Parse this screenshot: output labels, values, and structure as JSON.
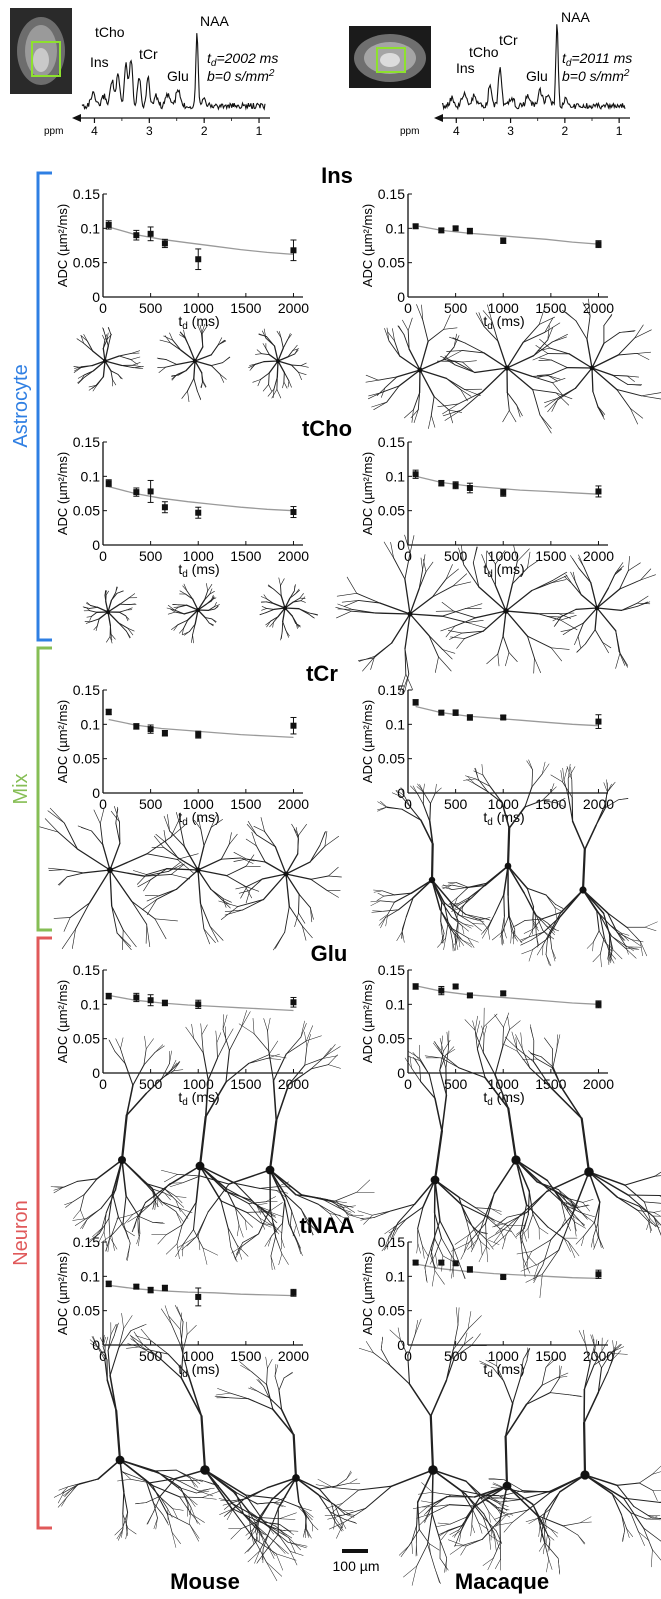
{
  "columns": {
    "left": "Mouse",
    "right": "Macaque"
  },
  "groups": [
    {
      "label": "Astrocyte",
      "color": "#2f7fe3"
    },
    {
      "label": "Mix",
      "color": "#86be55"
    },
    {
      "label": "Neuron",
      "color": "#e0595a"
    }
  ],
  "scale_bar": "100 µm",
  "spectra": [
    {
      "peaks": [
        "Ins",
        "tCho",
        "tCr",
        "Glu",
        "NAA"
      ],
      "td_label": "t",
      "td_sub": "d",
      "td_value": "=2002 ms",
      "b_value": "b=0 s/mm",
      "b_sup": "2",
      "ppm_label": "ppm",
      "ppm_ticks": [
        "4",
        "3",
        "2",
        "1"
      ]
    },
    {
      "peaks": [
        "Ins",
        "tCho",
        "tCr",
        "Glu",
        "NAA"
      ],
      "td_label": "t",
      "td_sub": "d",
      "td_value": "=2011 ms",
      "b_value": "b=0 s/mm",
      "b_sup": "2",
      "ppm_label": "ppm",
      "ppm_ticks": [
        "4",
        "3",
        "2",
        "1"
      ]
    }
  ],
  "axis_text": {
    "y_label": "ADC (µm²/ms)",
    "x_label_main": "t",
    "x_label_sub": "d",
    "x_label_unit": " (ms)"
  },
  "chart_data": [
    {
      "metabolite": "Ins",
      "species": "Mouse",
      "type": "scatter",
      "xlim": [
        0,
        2100
      ],
      "ylim": [
        0,
        0.15
      ],
      "xticks": [
        0,
        500,
        1000,
        1500,
        2000
      ],
      "yticks": [
        0,
        0.05,
        0.1,
        0.15
      ],
      "x": [
        60,
        350,
        500,
        650,
        1000,
        2000
      ],
      "y": [
        0.105,
        0.09,
        0.092,
        0.078,
        0.055,
        0.068
      ],
      "err": [
        0.006,
        0.007,
        0.01,
        0.006,
        0.015,
        0.015
      ],
      "fit": [
        0.102,
        0.091,
        0.084,
        0.079,
        0.074,
        0.069,
        0.065,
        0.062
      ]
    },
    {
      "metabolite": "Ins",
      "species": "Macaque",
      "type": "scatter",
      "xlim": [
        0,
        2100
      ],
      "ylim": [
        0,
        0.15
      ],
      "xticks": [
        0,
        500,
        1000,
        1500,
        2000
      ],
      "yticks": [
        0,
        0.05,
        0.1,
        0.15
      ],
      "x": [
        80,
        350,
        500,
        650,
        1000,
        2000
      ],
      "y": [
        0.103,
        0.097,
        0.1,
        0.096,
        0.082,
        0.077
      ],
      "err": [
        0.003,
        0.003,
        0.003,
        0.004,
        0.004,
        0.005
      ],
      "fit": [
        0.104,
        0.097,
        0.093,
        0.09,
        0.087,
        0.084,
        0.08,
        0.077
      ]
    },
    {
      "metabolite": "tCho",
      "species": "Mouse",
      "type": "scatter",
      "xlim": [
        0,
        2100
      ],
      "ylim": [
        0,
        0.15
      ],
      "xticks": [
        0,
        500,
        1000,
        1500,
        2000
      ],
      "yticks": [
        0,
        0.05,
        0.1,
        0.15
      ],
      "x": [
        60,
        350,
        500,
        650,
        1000,
        2000
      ],
      "y": [
        0.09,
        0.077,
        0.078,
        0.055,
        0.047,
        0.048
      ],
      "err": [
        0.005,
        0.006,
        0.016,
        0.008,
        0.008,
        0.008
      ],
      "fit": [
        0.085,
        0.075,
        0.068,
        0.063,
        0.059,
        0.055,
        0.052,
        0.05
      ]
    },
    {
      "metabolite": "tCho",
      "species": "Macaque",
      "type": "scatter",
      "xlim": [
        0,
        2100
      ],
      "ylim": [
        0,
        0.15
      ],
      "xticks": [
        0,
        500,
        1000,
        1500,
        2000
      ],
      "yticks": [
        0,
        0.05,
        0.1,
        0.15
      ],
      "x": [
        80,
        350,
        500,
        650,
        1000,
        2000
      ],
      "y": [
        0.103,
        0.09,
        0.087,
        0.083,
        0.076,
        0.078
      ],
      "err": [
        0.006,
        0.004,
        0.005,
        0.007,
        0.005,
        0.008
      ],
      "fit": [
        0.1,
        0.091,
        0.086,
        0.083,
        0.08,
        0.078,
        0.076,
        0.074
      ]
    },
    {
      "metabolite": "tCr",
      "species": "Mouse",
      "type": "scatter",
      "xlim": [
        0,
        2100
      ],
      "ylim": [
        0,
        0.15
      ],
      "xticks": [
        0,
        500,
        1000,
        1500,
        2000
      ],
      "yticks": [
        0,
        0.05,
        0.1,
        0.15
      ],
      "x": [
        60,
        350,
        500,
        650,
        1000,
        2000
      ],
      "y": [
        0.118,
        0.097,
        0.093,
        0.087,
        0.085,
        0.098
      ],
      "err": [
        0.004,
        0.004,
        0.006,
        0.004,
        0.005,
        0.012
      ],
      "fit": [
        0.107,
        0.099,
        0.094,
        0.091,
        0.088,
        0.085,
        0.083,
        0.081
      ]
    },
    {
      "metabolite": "tCr",
      "species": "Macaque",
      "type": "scatter",
      "xlim": [
        0,
        2100
      ],
      "ylim": [
        0,
        0.15
      ],
      "xticks": [
        0,
        500,
        1000,
        1500,
        2000
      ],
      "yticks": [
        0,
        0.05,
        0.1,
        0.15
      ],
      "x": [
        80,
        350,
        500,
        650,
        1000,
        2000
      ],
      "y": [
        0.132,
        0.117,
        0.117,
        0.11,
        0.11,
        0.104
      ],
      "err": [
        0.004,
        0.003,
        0.004,
        0.004,
        0.003,
        0.01
      ],
      "fit": [
        0.126,
        0.117,
        0.112,
        0.109,
        0.106,
        0.103,
        0.1,
        0.098
      ]
    },
    {
      "metabolite": "Glu",
      "species": "Mouse",
      "type": "scatter",
      "xlim": [
        0,
        2100
      ],
      "ylim": [
        0,
        0.15
      ],
      "xticks": [
        0,
        500,
        1000,
        1500,
        2000
      ],
      "yticks": [
        0,
        0.05,
        0.1,
        0.15
      ],
      "x": [
        60,
        350,
        500,
        650,
        1000,
        2000
      ],
      "y": [
        0.112,
        0.11,
        0.106,
        0.102,
        0.1,
        0.103
      ],
      "err": [
        0.004,
        0.006,
        0.008,
        0.004,
        0.006,
        0.007
      ],
      "fit": [
        0.113,
        0.106,
        0.102,
        0.099,
        0.097,
        0.095,
        0.093,
        0.091
      ]
    },
    {
      "metabolite": "Glu",
      "species": "Macaque",
      "type": "scatter",
      "xlim": [
        0,
        2100
      ],
      "ylim": [
        0,
        0.15
      ],
      "xticks": [
        0,
        500,
        1000,
        1500,
        2000
      ],
      "yticks": [
        0,
        0.05,
        0.1,
        0.15
      ],
      "x": [
        80,
        350,
        500,
        650,
        1000,
        2000
      ],
      "y": [
        0.126,
        0.12,
        0.126,
        0.113,
        0.116,
        0.1
      ],
      "err": [
        0.004,
        0.006,
        0.003,
        0.003,
        0.003,
        0.005
      ],
      "fit": [
        0.127,
        0.119,
        0.114,
        0.111,
        0.108,
        0.105,
        0.102,
        0.1
      ]
    },
    {
      "metabolite": "tNAA",
      "species": "Mouse",
      "type": "scatter",
      "xlim": [
        0,
        2100
      ],
      "ylim": [
        0,
        0.15
      ],
      "xticks": [
        0,
        500,
        1000,
        1500,
        2000
      ],
      "yticks": [
        0,
        0.05,
        0.1,
        0.15
      ],
      "x": [
        60,
        350,
        500,
        650,
        1000,
        2000
      ],
      "y": [
        0.089,
        0.085,
        0.08,
        0.083,
        0.07,
        0.076
      ],
      "err": [
        0.004,
        0.003,
        0.004,
        0.004,
        0.013,
        0.005
      ],
      "fit": [
        0.087,
        0.082,
        0.079,
        0.077,
        0.076,
        0.074,
        0.073,
        0.072
      ]
    },
    {
      "metabolite": "tNAA",
      "species": "Macaque",
      "type": "scatter",
      "xlim": [
        0,
        2100
      ],
      "ylim": [
        0,
        0.15
      ],
      "xticks": [
        0,
        500,
        1000,
        1500,
        2000
      ],
      "yticks": [
        0,
        0.05,
        0.1,
        0.15
      ],
      "x": [
        80,
        350,
        500,
        650,
        1000,
        2000
      ],
      "y": [
        0.12,
        0.12,
        0.119,
        0.11,
        0.099,
        0.103
      ],
      "err": [
        0.003,
        0.003,
        0.003,
        0.004,
        0.002,
        0.006
      ],
      "fit": [
        0.118,
        0.111,
        0.107,
        0.104,
        0.102,
        0.1,
        0.098,
        0.097
      ]
    }
  ]
}
